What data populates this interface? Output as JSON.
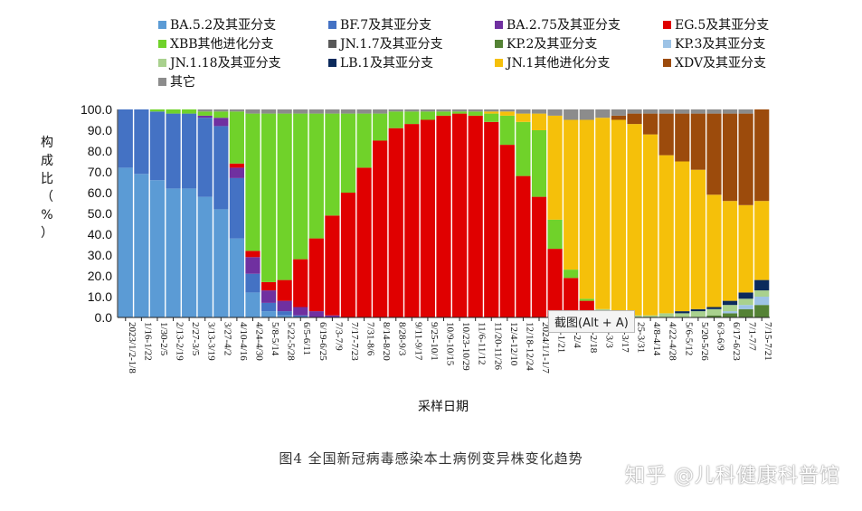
{
  "chart_data": {
    "type": "bar",
    "stacked": true,
    "ylabel": "构成比（%）",
    "xlabel": "采样日期",
    "ylim": [
      0,
      100
    ],
    "yticks": [
      "0.0",
      "10.0",
      "20.0",
      "30.0",
      "40.0",
      "50.0",
      "60.0",
      "70.0",
      "80.0",
      "90.0",
      "100.0"
    ],
    "legend_position": "top",
    "categories": [
      "2023/1/2-1/8",
      "1/16-1/22",
      "1/30-2/5",
      "2/13-2/19",
      "2/27-3/5",
      "3/13-3/19",
      "3/27-4/2",
      "4/10-4/16",
      "4/24-4/30",
      "5/8-5/14",
      "5/22-5/28",
      "6/5-6/11",
      "6/19-6/25",
      "7/3-7/9",
      "7/17-7/23",
      "7/31-8/6",
      "8/14-8/20",
      "8/28-9/3",
      "9/11-9/17",
      "9/25-10/1",
      "10/9-10/15",
      "10/23-10/29",
      "11/6-11/12",
      "11/20-11/26",
      "12/4-12/10",
      "12/18-12/24",
      "2024/1/1-1/7",
      "1/15-1/21",
      "1/29-2/4",
      "2/12-2/18",
      "2/26-3/3",
      "3/11-3/17",
      "3/25-3/31",
      "4/8-4/14",
      "4/22-4/28",
      "5/6-5/12",
      "5/20-5/26",
      "6/3-6/9",
      "6/17-6/23",
      "7/1-7/7",
      "7/15-7/21"
    ],
    "x_tick_labels": [
      "2023/1/2-1/8",
      "1/16-1/22",
      "1/30-2/5",
      "2/13-2/19",
      "2/27-3/5",
      "3/13-3/19",
      "3/27-4/2",
      "4/10-4/16",
      "4/24-4/30",
      "5/8-5/14",
      "5/22-5/28",
      "6/5-6/11",
      "6/19-6/25",
      "7/3-7/9",
      "7/17-7/23",
      "7/31-8/6",
      "8/14-8/20",
      "8/28-9/3",
      "9/11-9/17",
      "9/25-10/1",
      "10/9-10/15",
      "10/23-10/29",
      "11/6-11/12",
      "11/20-11/26",
      "12/4-12/10",
      "12/18-12/24",
      "2024/1/1-1/7",
      "15-1/21",
      "29-2/4",
      "12-2/18",
      "26-3/3",
      "11-3/17",
      "25-3/31",
      "4/8-4/14",
      "4/22-4/28",
      "5/6-5/12",
      "5/20-5/26",
      "6/3-6/9",
      "6/17-6/23",
      "7/1-7/7",
      "7/15-7/21"
    ],
    "series": [
      {
        "name": "BA.5.2及其亚分支",
        "color": "#5b9bd5",
        "values": [
          72,
          69,
          66,
          62,
          62,
          58,
          52,
          38,
          12,
          3,
          1,
          0,
          0,
          0,
          0,
          0,
          0,
          0,
          0,
          0,
          0,
          0,
          0,
          0,
          0,
          0,
          0,
          0,
          0,
          0,
          0,
          0,
          0,
          0,
          0,
          0,
          0,
          0,
          0,
          0,
          0
        ]
      },
      {
        "name": "BF.7及其亚分支",
        "color": "#4472c4",
        "values": [
          28,
          31,
          33,
          36,
          36,
          38,
          40,
          29,
          9,
          4,
          2,
          1,
          0,
          0,
          0,
          0,
          0,
          0,
          0,
          0,
          0,
          0,
          0,
          0,
          0,
          0,
          0,
          0,
          0,
          0,
          0,
          0,
          0,
          0,
          0,
          0,
          0,
          0,
          0,
          0,
          0
        ]
      },
      {
        "name": "BA.2.75及其亚分支",
        "color": "#7030a0",
        "values": [
          0,
          0,
          0,
          0,
          0,
          1,
          4,
          5,
          8,
          6,
          5,
          4,
          3,
          1,
          0,
          0,
          0,
          0,
          0,
          0,
          0,
          0,
          0,
          0,
          0,
          0,
          0,
          0,
          0,
          0,
          0,
          0,
          0,
          0,
          0,
          0,
          0,
          0,
          0,
          0,
          0
        ]
      },
      {
        "name": "EG.5及其亚分支",
        "color": "#e00000",
        "values": [
          0,
          0,
          0,
          0,
          0,
          0,
          0,
          2,
          3,
          4,
          10,
          23,
          35,
          48,
          60,
          72,
          85,
          91,
          93,
          95,
          97,
          98,
          97,
          94,
          83,
          68,
          58,
          33,
          19,
          8,
          3,
          1,
          0,
          0,
          0,
          0,
          0,
          0,
          0,
          0,
          0
        ]
      },
      {
        "name": "XBB其他进化分支",
        "color": "#70d22a",
        "values": [
          0,
          0,
          1,
          2,
          2,
          2,
          3,
          25,
          66,
          81,
          80,
          70,
          60,
          49,
          38,
          26,
          13,
          8,
          6,
          4,
          2,
          1,
          2,
          4,
          14,
          26,
          32,
          14,
          4,
          1,
          0,
          0,
          0,
          0,
          0,
          0,
          0,
          0,
          0,
          0,
          0
        ]
      },
      {
        "name": "JN.1.7及其亚分支",
        "color": "#595959",
        "values": [
          0,
          0,
          0,
          0,
          0,
          0,
          0,
          0,
          0,
          0,
          0,
          0,
          0,
          0,
          0,
          0,
          0,
          0,
          0,
          0,
          0,
          0,
          0,
          0,
          0,
          0,
          0,
          0,
          0,
          0,
          0,
          0,
          0,
          0,
          0,
          0,
          0,
          0,
          0,
          0,
          0
        ]
      },
      {
        "name": "KP.2及其亚分支",
        "color": "#548235",
        "values": [
          0,
          0,
          0,
          0,
          0,
          0,
          0,
          0,
          0,
          0,
          0,
          0,
          0,
          0,
          0,
          0,
          0,
          0,
          0,
          0,
          0,
          0,
          0,
          0,
          0,
          0,
          0,
          0,
          0,
          0,
          0,
          0,
          0,
          0,
          0,
          0,
          0,
          1,
          2,
          4,
          6
        ]
      },
      {
        "name": "KP.3及其亚分支",
        "color": "#9dc3e6",
        "values": [
          0,
          0,
          0,
          0,
          0,
          0,
          0,
          0,
          0,
          0,
          0,
          0,
          0,
          0,
          0,
          0,
          0,
          0,
          0,
          0,
          0,
          0,
          0,
          0,
          0,
          0,
          0,
          0,
          0,
          0,
          0,
          0,
          0,
          0,
          0,
          0,
          0,
          0,
          1,
          2,
          4
        ]
      },
      {
        "name": "JN.1.18及其亚分支",
        "color": "#a9d18e",
        "values": [
          0,
          0,
          0,
          0,
          0,
          0,
          0,
          0,
          0,
          0,
          0,
          0,
          0,
          0,
          0,
          0,
          0,
          0,
          0,
          0,
          0,
          0,
          0,
          0,
          0,
          0,
          0,
          0,
          0,
          0,
          1,
          1,
          1,
          1,
          2,
          2,
          3,
          3,
          3,
          3,
          3
        ]
      },
      {
        "name": "LB.1及其亚分支",
        "color": "#0b2a5c",
        "values": [
          0,
          0,
          0,
          0,
          0,
          0,
          0,
          0,
          0,
          0,
          0,
          0,
          0,
          0,
          0,
          0,
          0,
          0,
          0,
          0,
          0,
          0,
          0,
          0,
          0,
          0,
          0,
          0,
          0,
          0,
          0,
          0,
          0,
          0,
          0,
          1,
          1,
          1,
          2,
          3,
          5
        ]
      },
      {
        "name": "JN.1其他进化分支",
        "color": "#f5c00a",
        "values": [
          0,
          0,
          0,
          0,
          0,
          0,
          0,
          0,
          0,
          0,
          0,
          0,
          0,
          0,
          0,
          0,
          0,
          0,
          0,
          0,
          0,
          0,
          0,
          1,
          2,
          4,
          8,
          50,
          72,
          86,
          92,
          93,
          92,
          87,
          76,
          72,
          67,
          54,
          48,
          42,
          38
        ]
      },
      {
        "name": "XDV及其亚分支",
        "color": "#9c4b0c",
        "values": [
          0,
          0,
          0,
          0,
          0,
          0,
          0,
          0,
          0,
          0,
          0,
          0,
          0,
          0,
          0,
          0,
          0,
          0,
          0,
          0,
          0,
          0,
          0,
          0,
          0,
          0,
          0,
          0,
          0,
          0,
          0,
          2,
          5,
          10,
          20,
          23,
          27,
          39,
          42,
          44,
          44
        ]
      },
      {
        "name": "其它",
        "color": "#8c8c8c",
        "values": [
          0,
          0,
          0,
          0,
          0,
          1,
          1,
          1,
          2,
          2,
          2,
          2,
          2,
          2,
          2,
          2,
          2,
          1,
          1,
          1,
          1,
          1,
          1,
          1,
          1,
          2,
          2,
          3,
          5,
          5,
          4,
          3,
          2,
          2,
          2,
          2,
          2,
          2,
          2,
          2,
          0
        ]
      }
    ]
  },
  "caption": "图4   全国新冠病毒感染本土病例变异株变化趋势",
  "tooltip": "截图(Alt + A)",
  "watermark": "知乎 @儿科健康科普馆"
}
